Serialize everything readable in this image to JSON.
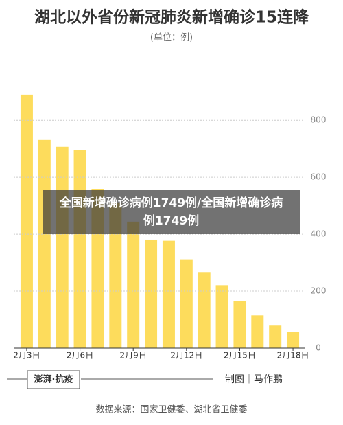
{
  "chart_data": {
    "type": "bar",
    "title": "湖北以外省份新冠肺炎新增确诊15连降",
    "subtitle": "(单位：例)",
    "categories": [
      "2月3日",
      null,
      null,
      "2月6日",
      null,
      null,
      "2月9日",
      null,
      null,
      "2月12日",
      null,
      null,
      "2月15日",
      null,
      null,
      "2月18日"
    ],
    "values": [
      890,
      731,
      707,
      696,
      558,
      509,
      444,
      381,
      377,
      312,
      267,
      221,
      166,
      115,
      79,
      56
    ],
    "color": "#fddc5c",
    "ylim": [
      0,
      950
    ],
    "yticks": [
      0,
      200,
      400,
      600,
      800
    ],
    "grid": true,
    "overlay_caption": "全国新增确诊病例1749例/全国新增确诊病例1749例",
    "logo": "澎湃·抗疫",
    "credit": "制图｜马作鹏",
    "source": "数据来源：国家卫健委、湖北省卫健委"
  }
}
